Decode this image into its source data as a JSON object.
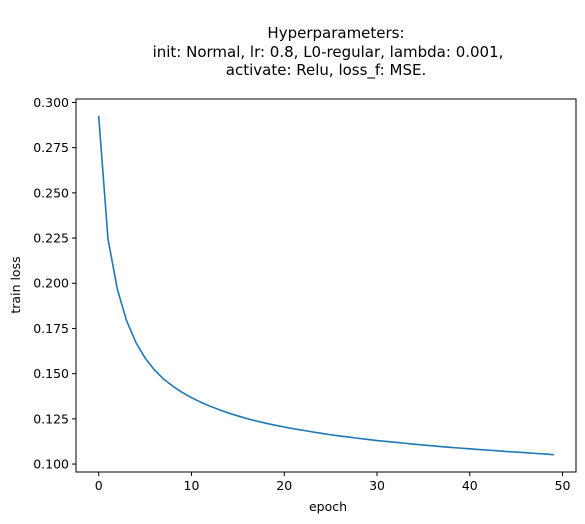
{
  "chart_data": {
    "type": "line",
    "title_lines": [
      "Hyperparameters:",
      "init: Normal, lr: 0.8, L0-regular, lambda: 0.001,",
      "activate: Relu, loss_f: MSE."
    ],
    "xlabel": "epoch",
    "ylabel": "train loss",
    "xlim": [
      -2.45,
      51.45
    ],
    "ylim": [
      0.0956,
      0.3019
    ],
    "x_ticks": [
      0,
      10,
      20,
      30,
      40,
      50
    ],
    "x_tick_labels": [
      "0",
      "10",
      "20",
      "30",
      "40",
      "50"
    ],
    "y_ticks": [
      0.1,
      0.125,
      0.15,
      0.175,
      0.2,
      0.225,
      0.25,
      0.275,
      0.3
    ],
    "y_tick_labels": [
      "0.100",
      "0.125",
      "0.150",
      "0.175",
      "0.200",
      "0.225",
      "0.250",
      "0.275",
      "0.300"
    ],
    "grid": false,
    "series": [
      {
        "color": "#1f77b4",
        "x": [
          0,
          1,
          2,
          3,
          4,
          5,
          6,
          7,
          8,
          9,
          10,
          11,
          12,
          13,
          14,
          15,
          16,
          17,
          18,
          19,
          20,
          21,
          22,
          23,
          24,
          25,
          26,
          27,
          28,
          29,
          30,
          31,
          32,
          33,
          34,
          35,
          36,
          37,
          38,
          39,
          40,
          41,
          42,
          43,
          44,
          45,
          46,
          47,
          48,
          49
        ],
        "y": [
          0.2922,
          0.2245,
          0.1968,
          0.1793,
          0.1673,
          0.1586,
          0.1521,
          0.147,
          0.143,
          0.1396,
          0.1367,
          0.1342,
          0.132,
          0.13,
          0.1282,
          0.1266,
          0.1251,
          0.1238,
          0.1226,
          0.1215,
          0.1205,
          0.1195,
          0.1187,
          0.1178,
          0.117,
          0.1162,
          0.1155,
          0.1149,
          0.1142,
          0.1136,
          0.113,
          0.1125,
          0.112,
          0.1115,
          0.111,
          0.1105,
          0.1101,
          0.1096,
          0.1092,
          0.1088,
          0.1084,
          0.108,
          0.1077,
          0.1073,
          0.1069,
          0.1066,
          0.1063,
          0.1059,
          0.1056,
          0.1052
        ]
      }
    ]
  }
}
